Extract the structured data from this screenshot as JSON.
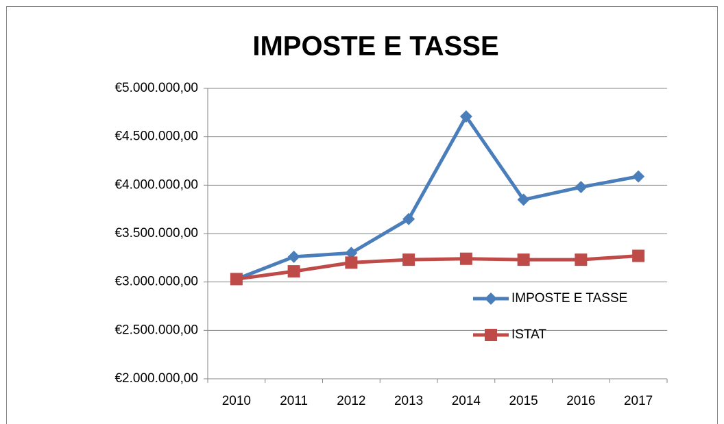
{
  "chart_data": {
    "type": "line",
    "title": "IMPOSTE E TASSE",
    "categories": [
      "2010",
      "2011",
      "2012",
      "2013",
      "2014",
      "2015",
      "2016",
      "2017"
    ],
    "series": [
      {
        "name": "IMPOSTE E TASSE",
        "color": "#4a7ebb",
        "marker": "diamond",
        "values": [
          3030000,
          3260000,
          3300000,
          3650000,
          4710000,
          3850000,
          3980000,
          4090000
        ]
      },
      {
        "name": "ISTAT",
        "color": "#be4b48",
        "marker": "square",
        "values": [
          3030000,
          3110000,
          3200000,
          3230000,
          3240000,
          3230000,
          3230000,
          3270000
        ]
      }
    ],
    "ylim": [
      2000000,
      5000000
    ],
    "yticks": [
      {
        "value": 2000000,
        "label": "€2.000.000,00"
      },
      {
        "value": 2500000,
        "label": "€2.500.000,00"
      },
      {
        "value": 3000000,
        "label": "€3.000.000,00"
      },
      {
        "value": 3500000,
        "label": "€3.500.000,00"
      },
      {
        "value": 4000000,
        "label": "€4.000.000,00"
      },
      {
        "value": 4500000,
        "label": "€4.500.000,00"
      },
      {
        "value": 5000000,
        "label": "€5.000.000,00"
      }
    ],
    "grid": true,
    "legend": "right"
  }
}
